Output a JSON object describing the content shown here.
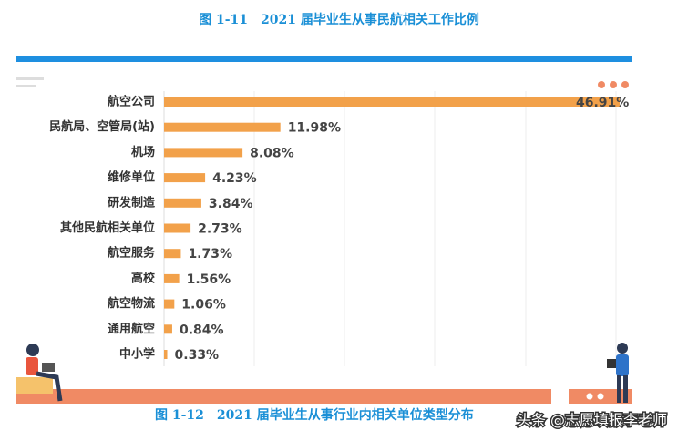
{
  "chart_data": {
    "type": "bar",
    "orientation": "horizontal",
    "title": "图 1-11　2021 届毕业生从事民航相关工作比例",
    "caption": "图 1-12　2021 届毕业生从事行业内相关单位类型分布",
    "watermark": "头条 @志愿填报李老师",
    "categories": [
      "航空公司",
      "民航局、空管局(站)",
      "机场",
      "维修单位",
      "研发制造",
      "其他民航相关单位",
      "航空服务",
      "高校",
      "航空物流",
      "通用航空",
      "中小学"
    ],
    "values": [
      46.91,
      11.98,
      8.08,
      4.23,
      3.84,
      2.73,
      1.73,
      1.56,
      1.06,
      0.84,
      0.33
    ],
    "value_labels": [
      "46.91%",
      "11.98%",
      "8.08%",
      "4.23%",
      "3.84%",
      "2.73%",
      "1.73%",
      "1.56%",
      "1.06%",
      "0.84%",
      "0.33%"
    ],
    "color": "#f2a14a"
  }
}
